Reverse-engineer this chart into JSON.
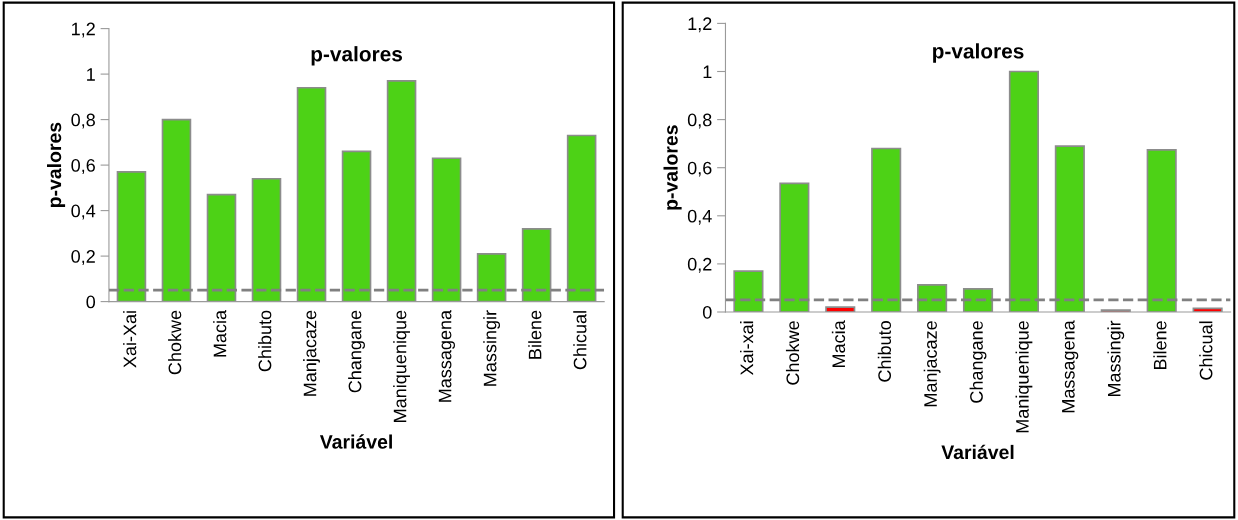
{
  "chart_data": [
    {
      "type": "bar",
      "title": "p-valores",
      "xlabel": "Variável",
      "ylabel": "p-valores",
      "categories": [
        "Xai-Xai",
        "Chokwe",
        "Macia",
        "Chibuto",
        "Manjacaze",
        "Changane",
        "Maniquenique",
        "Massagena",
        "Massingir",
        "Bilene",
        "Chicual"
      ],
      "values": [
        0.57,
        0.8,
        0.47,
        0.54,
        0.94,
        0.66,
        0.97,
        0.63,
        0.21,
        0.32,
        0.73
      ],
      "colors": [
        "#4dd216",
        "#4dd216",
        "#4dd216",
        "#4dd216",
        "#4dd216",
        "#4dd216",
        "#4dd216",
        "#4dd216",
        "#4dd216",
        "#4dd216",
        "#4dd216"
      ],
      "ylim": [
        0,
        1.2
      ],
      "yticks": [
        0,
        {
          "value": 0.2,
          "label": "0,2"
        },
        {
          "value": 0.4,
          "label": "0,4"
        },
        {
          "value": 0.6,
          "label": "0,6"
        },
        {
          "value": 0.8,
          "label": "0,8"
        },
        1,
        {
          "value": 1.2,
          "label": "1,2"
        }
      ],
      "ref_lines": [
        {
          "axis": "y",
          "value": 0.05,
          "color": "#808080",
          "line_style": "dashed"
        }
      ]
    },
    {
      "type": "bar",
      "title": "p-valores",
      "xlabel": "Variável",
      "ylabel": "p-valores",
      "categories": [
        "Xai-xai",
        "Chokwe",
        "Macia",
        "Chibuto",
        "Manjacaze",
        "Changane",
        "Maniquenique",
        "Massagena",
        "Massingir",
        "Bilene",
        "Chicual"
      ],
      "values": [
        0.17,
        0.535,
        0.02,
        0.68,
        0.113,
        0.096,
        1.0,
        0.69,
        0.008,
        0.674,
        0.015
      ],
      "colors": [
        "#4dd216",
        "#4dd216",
        "#ff0000",
        "#4dd216",
        "#4dd216",
        "#4dd216",
        "#4dd216",
        "#4dd216",
        "#ff0000",
        "#4dd216",
        "#ff0000"
      ],
      "ylim": [
        0,
        1.2
      ],
      "yticks": [
        0,
        {
          "value": 0.2,
          "label": "0,2"
        },
        {
          "value": 0.4,
          "label": "0,4"
        },
        {
          "value": 0.6,
          "label": "0,6"
        },
        {
          "value": 0.8,
          "label": "0,8"
        },
        1,
        {
          "value": 1.2,
          "label": "1,2"
        }
      ],
      "ref_lines": [
        {
          "axis": "y",
          "value": 0.05,
          "color": "#808080",
          "line_style": "dashed"
        }
      ]
    }
  ]
}
